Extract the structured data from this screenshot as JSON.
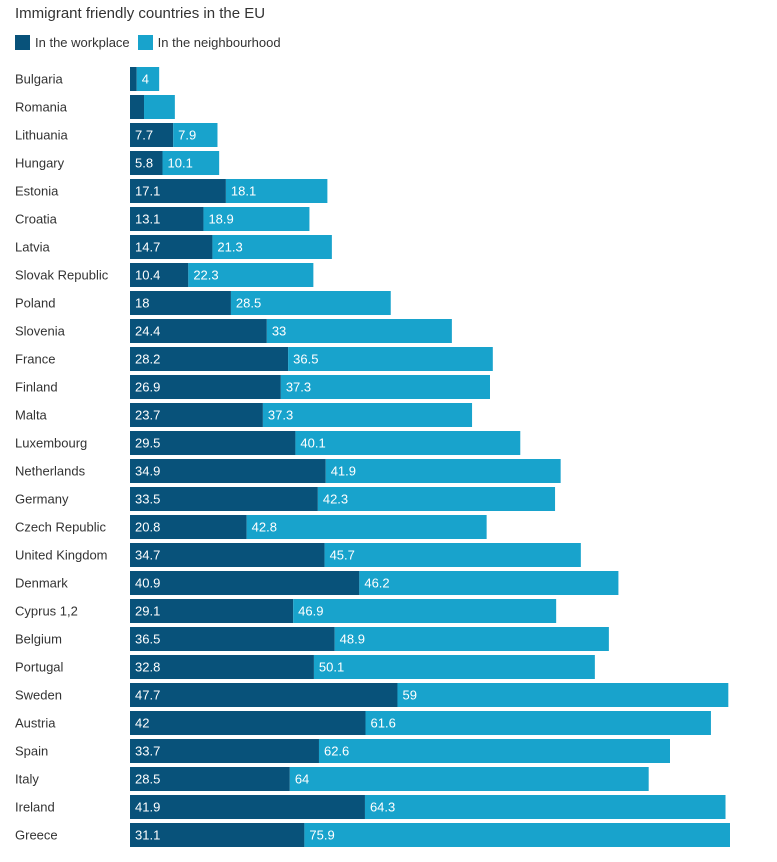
{
  "chart_data": {
    "type": "bar",
    "orientation": "horizontal",
    "stacked": true,
    "title": "Immigrant friendly countries in the EU",
    "legend_position": "top-left",
    "categories": [
      "Bulgaria",
      "Romania",
      "Lithuania",
      "Hungary",
      "Estonia",
      "Croatia",
      "Latvia",
      "Slovak Republic",
      "Poland",
      "Slovenia",
      "France",
      "Finland",
      "Malta",
      "Luxembourg",
      "Netherlands",
      "Germany",
      "Czech Republic",
      "United Kingdom",
      "Denmark",
      "Cyprus 1,2",
      "Belgium",
      "Portugal",
      "Sweden",
      "Austria",
      "Spain",
      "Italy",
      "Ireland",
      "Greece"
    ],
    "series": [
      {
        "name": "In the workplace",
        "color": "#08527a",
        "values": [
          1.2,
          2.5,
          7.7,
          5.8,
          17.1,
          13.1,
          14.7,
          10.4,
          18,
          24.4,
          28.2,
          26.9,
          23.7,
          29.5,
          34.9,
          33.5,
          20.8,
          34.7,
          40.9,
          29.1,
          36.5,
          32.8,
          47.7,
          42,
          33.7,
          28.5,
          41.9,
          31.1
        ],
        "labels": [
          "",
          "",
          "7.7",
          "5.8",
          "17.1",
          "13.1",
          "14.7",
          "10.4",
          "18",
          "24.4",
          "28.2",
          "26.9",
          "23.7",
          "29.5",
          "34.9",
          "33.5",
          "20.8",
          "34.7",
          "40.9",
          "29.1",
          "36.5",
          "32.8",
          "47.7",
          "42",
          "33.7",
          "28.5",
          "41.9",
          "31.1"
        ]
      },
      {
        "name": "In the neighbourhood",
        "color": "#18a3cc",
        "values": [
          4,
          5.5,
          7.9,
          10.1,
          18.1,
          18.9,
          21.3,
          22.3,
          28.5,
          33,
          36.5,
          37.3,
          37.3,
          40.1,
          41.9,
          42.3,
          42.8,
          45.7,
          46.2,
          46.9,
          48.9,
          50.1,
          59,
          61.6,
          62.6,
          64,
          64.3,
          75.9
        ],
        "labels": [
          "4",
          "",
          "7.9",
          "10.1",
          "18.1",
          "18.9",
          "21.3",
          "22.3",
          "28.5",
          "33",
          "36.5",
          "37.3",
          "37.3",
          "40.1",
          "41.9",
          "42.3",
          "42.8",
          "45.7",
          "46.2",
          "46.9",
          "48.9",
          "50.1",
          "59",
          "61.6",
          "62.6",
          "64",
          "64.3",
          "75.9"
        ]
      }
    ],
    "xlim": [
      0,
      107
    ],
    "grid": false
  }
}
